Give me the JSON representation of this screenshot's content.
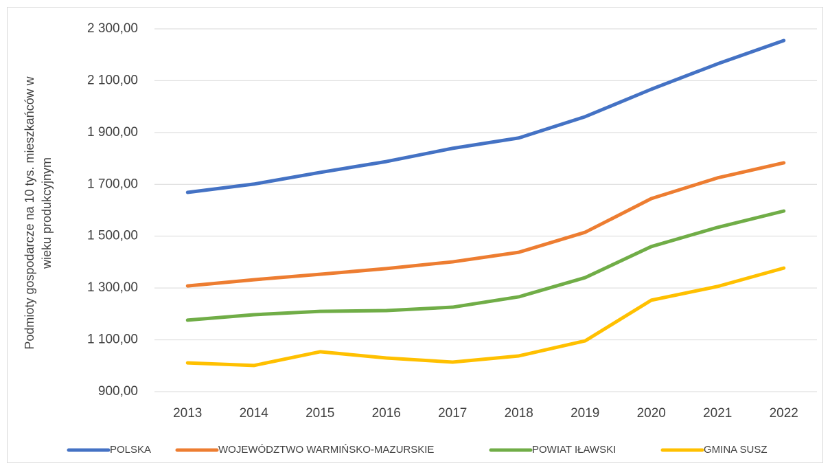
{
  "chart_data": {
    "type": "line",
    "ylabel": [
      "Podmioty gospodarcze na 10 tys. mieszkańców w",
      "wieku produkcyjnym"
    ],
    "categories": [
      "2013",
      "2014",
      "2015",
      "2016",
      "2017",
      "2018",
      "2019",
      "2020",
      "2021",
      "2022"
    ],
    "ylim": [
      900,
      2300
    ],
    "yticks": [
      {
        "value": 900,
        "label": "900,00"
      },
      {
        "value": 1100,
        "label": "1 100,00"
      },
      {
        "value": 1300,
        "label": "1 300,00"
      },
      {
        "value": 1500,
        "label": "1 500,00"
      },
      {
        "value": 1700,
        "label": "1 700,00"
      },
      {
        "value": 1900,
        "label": "1 900,00"
      },
      {
        "value": 2100,
        "label": "2 100,00"
      },
      {
        "value": 2300,
        "label": "2 300,00"
      }
    ],
    "grid": true,
    "legend": "bottom",
    "series": [
      {
        "name": "POLSKA",
        "color": "#4472c4",
        "values": [
          1669,
          1701,
          1746,
          1788,
          1839,
          1879,
          1961,
          2067,
          2165,
          2255
        ]
      },
      {
        "name": "WOJEWÓDZTWO WARMIŃSKO-MAZURSKIE",
        "color": "#ed7d31",
        "values": [
          1308,
          1332,
          1353,
          1375,
          1401,
          1438,
          1515,
          1645,
          1725,
          1783
        ]
      },
      {
        "name": "POWIAT IŁAWSKI",
        "color": "#70ad47",
        "values": [
          1176,
          1197,
          1210,
          1213,
          1226,
          1266,
          1340,
          1460,
          1534,
          1597
        ]
      },
      {
        "name": "GMINA SUSZ",
        "color": "#ffc000",
        "values": [
          1011,
          1001,
          1054,
          1030,
          1014,
          1038,
          1096,
          1253,
          1306,
          1377
        ]
      }
    ]
  }
}
